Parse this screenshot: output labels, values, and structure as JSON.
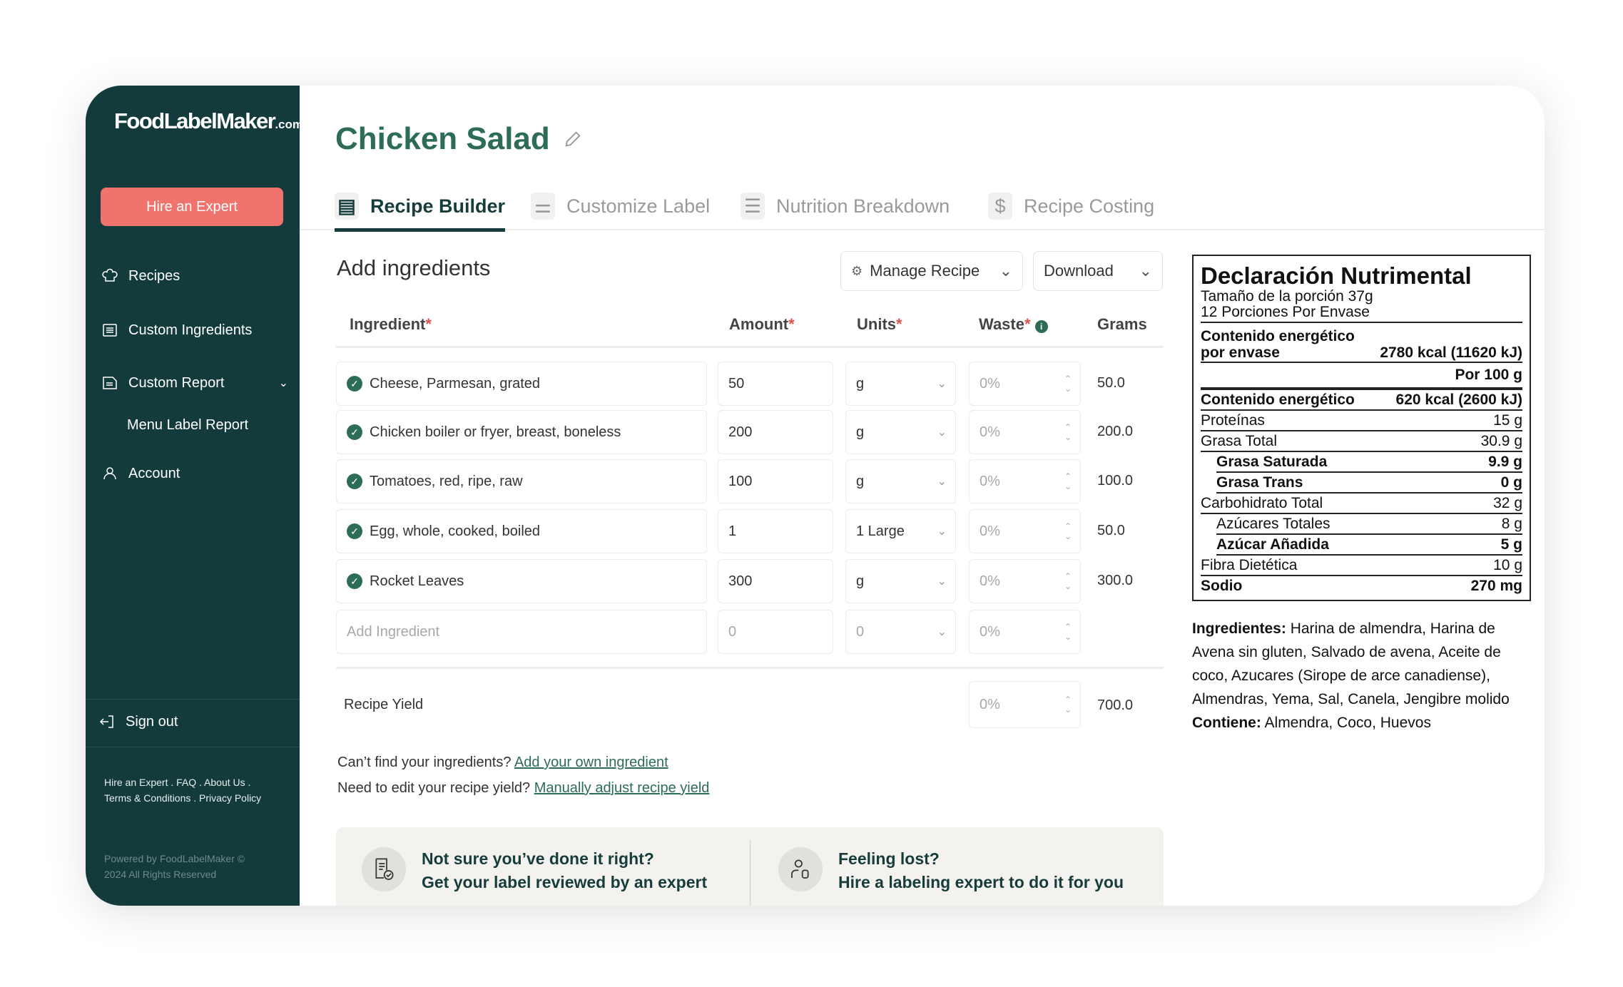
{
  "sidebar": {
    "logo": "FoodLabelMaker",
    "logo_suffix": ".com",
    "hire_button": "Hire an Expert",
    "items": [
      {
        "label": "Recipes",
        "icon": "chef-hat-icon"
      },
      {
        "label": "Custom Ingredients",
        "icon": "list-icon"
      },
      {
        "label": "Custom Report",
        "icon": "document-icon"
      },
      {
        "label": "Menu Label Report"
      },
      {
        "label": "Account",
        "icon": "user-icon"
      }
    ],
    "sign_out": "Sign out",
    "footer_links": [
      "Hire an Expert . FAQ . About Us .",
      "Terms & Conditions . Privacy Policy"
    ],
    "powered": [
      "Powered by FoodLabelMaker ©",
      "2024 All Rights Reserved"
    ]
  },
  "header": {
    "title": "Chicken Salad"
  },
  "tabs": [
    {
      "label": "Recipe Builder",
      "active": true
    },
    {
      "label": "Customize Label"
    },
    {
      "label": "Nutrition Breakdown"
    },
    {
      "label": "Recipe Costing"
    }
  ],
  "builder": {
    "heading": "Add ingredients",
    "manage_button": "Manage Recipe",
    "download_button": "Download",
    "columns": {
      "ingredient": "Ingredient",
      "amount": "Amount",
      "units": "Units",
      "waste": "Waste",
      "grams": "Grams",
      "required": "*"
    },
    "rows": [
      {
        "ingredient": "Cheese, Parmesan, grated",
        "amount": "50",
        "unit": "g",
        "waste": "0%",
        "grams": "50.0"
      },
      {
        "ingredient": "Chicken boiler or fryer, breast, boneless",
        "amount": "200",
        "unit": "g",
        "waste": "0%",
        "grams": "200.0"
      },
      {
        "ingredient": "Tomatoes, red, ripe, raw",
        "amount": "100",
        "unit": "g",
        "waste": "0%",
        "grams": "100.0"
      },
      {
        "ingredient": "Egg, whole, cooked, boiled",
        "amount": "1",
        "unit": "1 Large",
        "waste": "0%",
        "grams": "50.0"
      },
      {
        "ingredient": "Rocket Leaves",
        "amount": "300",
        "unit": "g",
        "waste": "0%",
        "grams": "300.0"
      }
    ],
    "new_row": {
      "ingredient_placeholder": "Add Ingredient",
      "amount_placeholder": "0",
      "unit_placeholder": "0",
      "waste_placeholder": "0%"
    },
    "yield": {
      "label": "Recipe Yield",
      "waste": "0%",
      "grams": "700.0"
    },
    "help1": {
      "text": "Can’t find your ingredients?",
      "link": "Add your own ingredient"
    },
    "help2": {
      "text": "Need to edit your recipe yield?",
      "link": "Manually adjust recipe yield"
    },
    "promo": [
      {
        "line1": "Not sure you’ve done it right?",
        "line2": "Get your label reviewed by an expert"
      },
      {
        "line1": "Feeling lost?",
        "line2": "Hire a labeling expert to do it for you"
      }
    ]
  },
  "label": {
    "title": "Declaración Nutrimental",
    "serving": "Tamaño de la porción 37g",
    "servings": "12 Porciones Por Envase",
    "energy_pkg_label1": "Contenido energético",
    "energy_pkg_label2": "por envase",
    "energy_pkg_value": "2780 kcal (11620 kJ)",
    "per": "Por 100 g",
    "rows": [
      {
        "name": "Contenido energético",
        "value": "620 kcal (2600 kJ)",
        "bold": true
      },
      {
        "name": "Proteínas",
        "value": "15 g"
      },
      {
        "name": "Grasa Total",
        "value": "30.9 g"
      },
      {
        "name": "Grasa Saturada",
        "value": "9.9 g",
        "bold": true,
        "indent": true
      },
      {
        "name": "Grasa Trans",
        "value": "0 g",
        "bold": true,
        "indent": true
      },
      {
        "name": "Carbohidrato Total",
        "value": "32 g"
      },
      {
        "name": "Azúcares Totales",
        "value": "8 g",
        "indent": true
      },
      {
        "name": "Azúcar Añadida",
        "value": "5 g",
        "bold": true,
        "indent": true
      },
      {
        "name": "Fibra Dietética",
        "value": "10 g"
      },
      {
        "name": "Sodio",
        "value": "270 mg",
        "bold": true
      }
    ],
    "ingredients_label": "Ingredientes:",
    "ingredients": "Harina de almendra, Harina de Avena sin gluten, Salvado de avena, Aceite de coco, Azucares (Sirope de arce canadiense), Almendras, Yema, Sal, Canela, Jengibre molido",
    "contains_label": "Contiene:",
    "contains": "Almendra, Coco, Huevos"
  },
  "colors": {
    "sidebar": "#143b3c",
    "accent": "#2e6c5a",
    "hire": "#f0736d",
    "required": "#e0524b"
  }
}
